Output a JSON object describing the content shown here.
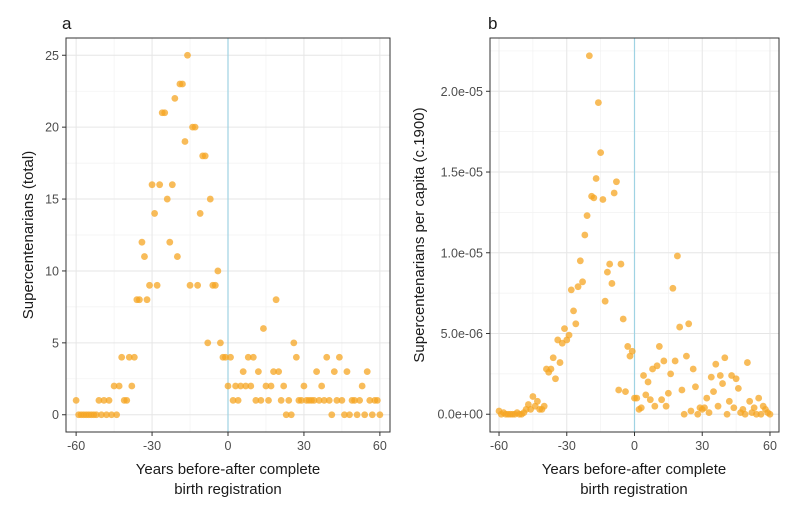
{
  "colors": {
    "point": "#f5a623",
    "vline": "#9fd3e3",
    "grid_major": "#e6e6e6",
    "grid_minor": "#f2f2f2",
    "panel_border": "#333333",
    "text": "#1a1a1a",
    "tick_text": "#4d4d4d"
  },
  "chart_data": [
    {
      "type": "scatter",
      "panel_label": "a",
      "xlabel_line1": "Years before-after complete",
      "xlabel_line2": "birth registration",
      "ylabel": "Supercentenarians (total)",
      "xlim": [
        -64,
        64
      ],
      "ylim": [
        -1.2,
        26.2
      ],
      "xticks": [
        -60,
        -30,
        0,
        30,
        60
      ],
      "xtick_labels": [
        "-60",
        "-30",
        "0",
        "30",
        "60"
      ],
      "yticks": [
        0,
        5,
        10,
        15,
        20,
        25
      ],
      "ytick_labels": [
        "0",
        "5",
        "10",
        "15",
        "20",
        "25"
      ],
      "vline_x": 0,
      "grid": true,
      "points": [
        [
          -60,
          1
        ],
        [
          -59,
          0
        ],
        [
          -58,
          0
        ],
        [
          -57,
          0
        ],
        [
          -56,
          0
        ],
        [
          -55,
          0
        ],
        [
          -54,
          0
        ],
        [
          -53,
          0
        ],
        [
          -52,
          0
        ],
        [
          -51,
          1
        ],
        [
          -50,
          0
        ],
        [
          -49,
          1
        ],
        [
          -48,
          0
        ],
        [
          -47,
          1
        ],
        [
          -46,
          0
        ],
        [
          -45,
          2
        ],
        [
          -44,
          0
        ],
        [
          -43,
          2
        ],
        [
          -42,
          4
        ],
        [
          -41,
          1
        ],
        [
          -40,
          1
        ],
        [
          -39,
          4
        ],
        [
          -38,
          2
        ],
        [
          -37,
          4
        ],
        [
          -36,
          8
        ],
        [
          -35,
          8
        ],
        [
          -34,
          12
        ],
        [
          -33,
          11
        ],
        [
          -32,
          8
        ],
        [
          -31,
          9
        ],
        [
          -30,
          16
        ],
        [
          -29,
          14
        ],
        [
          -28,
          9
        ],
        [
          -27,
          16
        ],
        [
          -26,
          21
        ],
        [
          -25,
          21
        ],
        [
          -24,
          15
        ],
        [
          -23,
          12
        ],
        [
          -22,
          16
        ],
        [
          -21,
          22
        ],
        [
          -20,
          11
        ],
        [
          -19,
          23
        ],
        [
          -18,
          23
        ],
        [
          -17,
          19
        ],
        [
          -16,
          25
        ],
        [
          -15,
          9
        ],
        [
          -14,
          20
        ],
        [
          -13,
          20
        ],
        [
          -12,
          9
        ],
        [
          -11,
          14
        ],
        [
          -10,
          18
        ],
        [
          -9,
          18
        ],
        [
          -8,
          5
        ],
        [
          -7,
          15
        ],
        [
          -6,
          9
        ],
        [
          -5,
          9
        ],
        [
          -4,
          10
        ],
        [
          -3,
          5
        ],
        [
          -2,
          4
        ],
        [
          -1,
          4
        ],
        [
          0,
          2
        ],
        [
          1,
          4
        ],
        [
          2,
          1
        ],
        [
          3,
          2
        ],
        [
          4,
          1
        ],
        [
          5,
          2
        ],
        [
          6,
          3
        ],
        [
          7,
          2
        ],
        [
          8,
          4
        ],
        [
          9,
          2
        ],
        [
          10,
          4
        ],
        [
          11,
          1
        ],
        [
          12,
          3
        ],
        [
          13,
          1
        ],
        [
          14,
          6
        ],
        [
          15,
          2
        ],
        [
          16,
          1
        ],
        [
          17,
          2
        ],
        [
          18,
          3
        ],
        [
          19,
          8
        ],
        [
          20,
          3
        ],
        [
          21,
          1
        ],
        [
          22,
          2
        ],
        [
          23,
          0
        ],
        [
          24,
          1
        ],
        [
          25,
          0
        ],
        [
          26,
          5
        ],
        [
          27,
          4
        ],
        [
          28,
          1
        ],
        [
          29,
          1
        ],
        [
          30,
          2
        ],
        [
          31,
          1
        ],
        [
          32,
          1
        ],
        [
          33,
          1
        ],
        [
          34,
          1
        ],
        [
          35,
          3
        ],
        [
          36,
          1
        ],
        [
          37,
          2
        ],
        [
          38,
          1
        ],
        [
          39,
          4
        ],
        [
          40,
          1
        ],
        [
          41,
          0
        ],
        [
          42,
          3
        ],
        [
          43,
          1
        ],
        [
          44,
          4
        ],
        [
          45,
          1
        ],
        [
          46,
          0
        ],
        [
          47,
          3
        ],
        [
          48,
          0
        ],
        [
          49,
          1
        ],
        [
          50,
          1
        ],
        [
          51,
          0
        ],
        [
          52,
          1
        ],
        [
          53,
          2
        ],
        [
          54,
          0
        ],
        [
          55,
          3
        ],
        [
          56,
          1
        ],
        [
          57,
          0
        ],
        [
          58,
          1
        ],
        [
          59,
          1
        ],
        [
          60,
          0
        ]
      ]
    },
    {
      "type": "scatter",
      "panel_label": "b",
      "xlabel_line1": "Years before-after complete",
      "xlabel_line2": "birth registration",
      "ylabel": "Supercentenarians per capita (c.1900)",
      "xlim": [
        -64,
        64
      ],
      "ylim": [
        -1.1e-06,
        2.33e-05
      ],
      "xticks": [
        -60,
        -30,
        0,
        30,
        60
      ],
      "xtick_labels": [
        "-60",
        "-30",
        "0",
        "30",
        "60"
      ],
      "yticks": [
        0,
        5e-06,
        1e-05,
        1.5e-05,
        2e-05
      ],
      "ytick_labels": [
        "0.0e+00",
        "5.0e-06",
        "1.0e-05",
        "1.5e-05",
        "2.0e-05"
      ],
      "vline_x": 0,
      "grid": true,
      "points": [
        [
          -60,
          2e-07
        ],
        [
          -59,
          0
        ],
        [
          -58,
          1e-07
        ],
        [
          -57,
          0
        ],
        [
          -56,
          0
        ],
        [
          -55,
          0
        ],
        [
          -54,
          0
        ],
        [
          -53,
          0
        ],
        [
          -52,
          1e-07
        ],
        [
          -51,
          0
        ],
        [
          -50,
          0
        ],
        [
          -49,
          1e-07
        ],
        [
          -48,
          3e-07
        ],
        [
          -47,
          6e-07
        ],
        [
          -46,
          3e-07
        ],
        [
          -45,
          1.1e-06
        ],
        [
          -44,
          5e-07
        ],
        [
          -43,
          8e-07
        ],
        [
          -42,
          3e-07
        ],
        [
          -41,
          3e-07
        ],
        [
          -40,
          5e-07
        ],
        [
          -39,
          2.8e-06
        ],
        [
          -38,
          2.6e-06
        ],
        [
          -37,
          2.8e-06
        ],
        [
          -36,
          3.5e-06
        ],
        [
          -35,
          2.2e-06
        ],
        [
          -34,
          4.6e-06
        ],
        [
          -33,
          3.2e-06
        ],
        [
          -32,
          4.4e-06
        ],
        [
          -31,
          5.3e-06
        ],
        [
          -30,
          4.6e-06
        ],
        [
          -29,
          4.9e-06
        ],
        [
          -28,
          7.7e-06
        ],
        [
          -27,
          6.4e-06
        ],
        [
          -26,
          5.6e-06
        ],
        [
          -25,
          7.9e-06
        ],
        [
          -24,
          9.5e-06
        ],
        [
          -23,
          8.2e-06
        ],
        [
          -22,
          1.11e-05
        ],
        [
          -21,
          1.23e-05
        ],
        [
          -20,
          2.22e-05
        ],
        [
          -19,
          1.35e-05
        ],
        [
          -18,
          1.34e-05
        ],
        [
          -17,
          1.46e-05
        ],
        [
          -16,
          1.93e-05
        ],
        [
          -15,
          1.62e-05
        ],
        [
          -14,
          1.33e-05
        ],
        [
          -13,
          7e-06
        ],
        [
          -12,
          8.8e-06
        ],
        [
          -11,
          9.3e-06
        ],
        [
          -10,
          8.1e-06
        ],
        [
          -9,
          1.37e-05
        ],
        [
          -8,
          1.44e-05
        ],
        [
          -7,
          1.5e-06
        ],
        [
          -6,
          9.3e-06
        ],
        [
          -5,
          5.9e-06
        ],
        [
          -4,
          1.4e-06
        ],
        [
          -3,
          4.2e-06
        ],
        [
          -2,
          3.6e-06
        ],
        [
          -1,
          3.9e-06
        ],
        [
          0,
          1e-06
        ],
        [
          1,
          1e-06
        ],
        [
          2,
          3e-07
        ],
        [
          3,
          4e-07
        ],
        [
          4,
          2.4e-06
        ],
        [
          5,
          1.2e-06
        ],
        [
          6,
          2e-06
        ],
        [
          7,
          9e-07
        ],
        [
          8,
          2.8e-06
        ],
        [
          9,
          5e-07
        ],
        [
          10,
          3e-06
        ],
        [
          11,
          4.2e-06
        ],
        [
          12,
          9e-07
        ],
        [
          13,
          3.3e-06
        ],
        [
          14,
          5e-07
        ],
        [
          15,
          1.3e-06
        ],
        [
          16,
          2.5e-06
        ],
        [
          17,
          7.8e-06
        ],
        [
          18,
          3.3e-06
        ],
        [
          19,
          9.8e-06
        ],
        [
          20,
          5.4e-06
        ],
        [
          21,
          1.5e-06
        ],
        [
          22,
          0
        ],
        [
          23,
          3.6e-06
        ],
        [
          24,
          5.6e-06
        ],
        [
          25,
          2e-07
        ],
        [
          26,
          2.8e-06
        ],
        [
          27,
          1.7e-06
        ],
        [
          28,
          0
        ],
        [
          29,
          4e-07
        ],
        [
          30,
          3e-07
        ],
        [
          31,
          4e-07
        ],
        [
          32,
          1e-06
        ],
        [
          33,
          1e-07
        ],
        [
          34,
          2.3e-06
        ],
        [
          35,
          1.4e-06
        ],
        [
          36,
          3.1e-06
        ],
        [
          37,
          5e-07
        ],
        [
          38,
          2.4e-06
        ],
        [
          39,
          1.9e-06
        ],
        [
          40,
          3.5e-06
        ],
        [
          41,
          0
        ],
        [
          42,
          8e-07
        ],
        [
          43,
          2.4e-06
        ],
        [
          44,
          4e-07
        ],
        [
          45,
          2.2e-06
        ],
        [
          46,
          1.6e-06
        ],
        [
          47,
          1e-07
        ],
        [
          48,
          3e-07
        ],
        [
          49,
          0
        ],
        [
          50,
          3.2e-06
        ],
        [
          51,
          8e-07
        ],
        [
          52,
          1e-07
        ],
        [
          53,
          4e-07
        ],
        [
          54,
          0
        ],
        [
          55,
          1e-06
        ],
        [
          56,
          0
        ],
        [
          57,
          5e-07
        ],
        [
          58,
          3e-07
        ],
        [
          59,
          1e-07
        ],
        [
          60,
          0
        ]
      ]
    }
  ]
}
